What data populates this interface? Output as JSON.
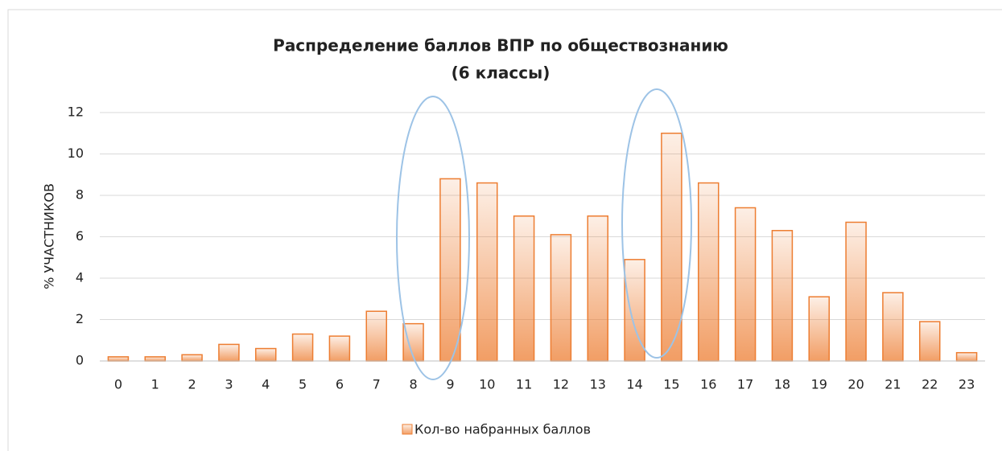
{
  "chart_data": {
    "type": "bar",
    "title": [
      "Распределение баллов ВПР по обществознанию",
      "(6 классы)"
    ],
    "y_label": "% УЧАСТНИКОВ",
    "categories": [
      "0",
      "1",
      "2",
      "3",
      "4",
      "5",
      "6",
      "7",
      "8",
      "9",
      "10",
      "11",
      "12",
      "13",
      "14",
      "15",
      "16",
      "17",
      "18",
      "19",
      "20",
      "21",
      "22",
      "23"
    ],
    "series": [
      {
        "name": "Кол-во набранных баллов",
        "color": "#ed7d31",
        "values": [
          0.2,
          0.2,
          0.3,
          0.8,
          0.6,
          1.3,
          1.2,
          2.4,
          1.8,
          8.8,
          8.6,
          7.0,
          6.1,
          7.0,
          4.9,
          11.0,
          8.6,
          7.4,
          6.3,
          3.1,
          6.7,
          3.3,
          1.9,
          0.4
        ]
      }
    ],
    "ylim": [
      0,
      12
    ],
    "yticks": [
      0,
      2,
      4,
      6,
      8,
      10,
      12
    ],
    "grid": true,
    "legend": "bottom"
  }
}
